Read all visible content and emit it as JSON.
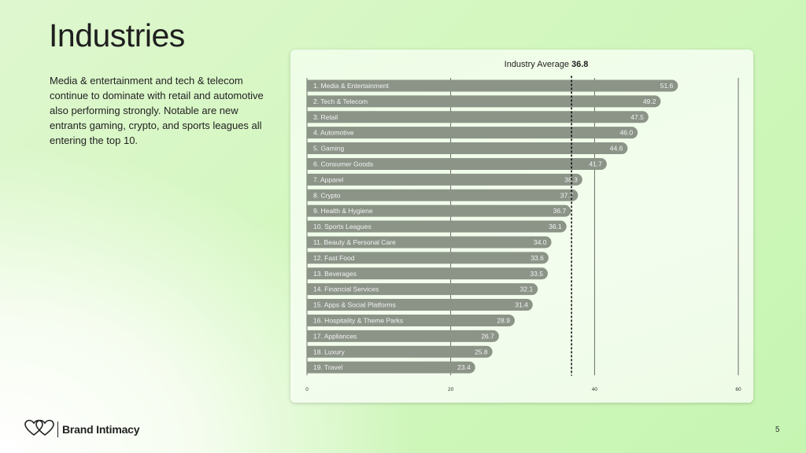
{
  "title": "Industries",
  "description": "Media & entertainment and tech & telecom continue to dominate with retail and automotive also performing strongly. Notable are new entrants gaming, crypto, and sports leagues all entering the top 10.",
  "brand": {
    "name": "Brand Intimacy",
    "logo_icon": "interlocking-hearts-icon"
  },
  "page_number": "5",
  "colors": {
    "bar": "#8c9488",
    "text_on_bar": "#f2f2f2",
    "gridline": "#4a4a4a",
    "average_line": "#111111"
  },
  "chart_data": {
    "type": "bar",
    "orientation": "horizontal",
    "title": "",
    "average": {
      "label": "Industry Average",
      "value": 36.8,
      "value_text": "36.8"
    },
    "categories": [
      "1. Media & Entertainment",
      "2. Tech & Telecom",
      "3. Retail",
      "4. Automotive",
      "5. Gaming",
      "6. Consumer Goods",
      "7. Apparel",
      "8. Crypto",
      "9. Health & Hygiene",
      "10. Sports Leagues",
      "11. Beauty & Personal Care",
      "12. Fast Food",
      "13. Beverages",
      "14. Financial Services",
      "15. Apps & Social Platforms",
      "16. Hospitality & Theme Parks",
      "17. Appliances",
      "18. Luxury",
      "19. Travel"
    ],
    "values": [
      51.6,
      49.2,
      47.5,
      46.0,
      44.6,
      41.7,
      38.3,
      37.7,
      36.7,
      36.1,
      34.0,
      33.6,
      33.5,
      32.1,
      31.4,
      28.9,
      26.7,
      25.8,
      23.4
    ],
    "value_labels": [
      "51.6",
      "49.2",
      "47.5",
      "46.0",
      "44.6",
      "41.7",
      "38.3",
      "37.7",
      "36.7",
      "36.1",
      "34.0",
      "33.6",
      "33.5",
      "32.1",
      "31.4",
      "28.9",
      "26.7",
      "25.8",
      "23.4"
    ],
    "xlim": [
      0,
      60
    ],
    "xticks": [
      0,
      20,
      40,
      60
    ],
    "xtick_labels": [
      "0",
      "20",
      "40",
      "60"
    ],
    "grid": true,
    "xlabel": "",
    "ylabel": ""
  }
}
